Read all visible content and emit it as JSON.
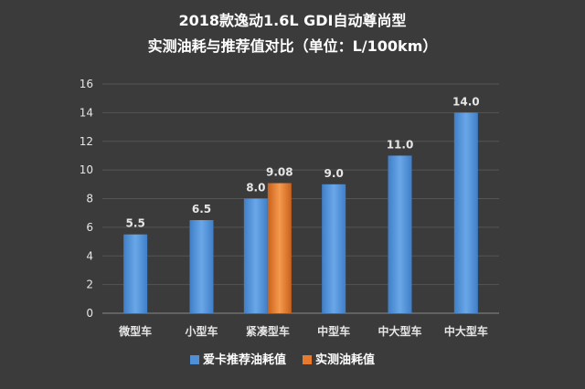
{
  "chart_data": {
    "type": "bar",
    "title_line1": "2018款逸动1.6L  GDI自动尊尚型",
    "title_line2": "实测油耗与推荐值对比（单位：L/100km）",
    "categories": [
      "微型车",
      "小型车",
      "紧凑型车",
      "中型车",
      "中大型车",
      "中大型车"
    ],
    "series": [
      {
        "name": "爱卡推荐油耗值",
        "color": "#4f8fd6",
        "values": [
          5.5,
          6.5,
          8.0,
          9.0,
          11.0,
          14.0
        ],
        "labels": [
          "5.5",
          "6.5",
          "8.0",
          "9.0",
          "11.0",
          "14.0"
        ]
      },
      {
        "name": "实测油耗值",
        "color": "#e77a2c",
        "values": [
          null,
          null,
          9.08,
          null,
          null,
          null
        ],
        "labels": [
          null,
          null,
          "9.08",
          null,
          null,
          null
        ]
      }
    ],
    "ylim": [
      0,
      16
    ],
    "yticks": [
      0,
      2,
      4,
      6,
      8,
      10,
      12,
      14,
      16
    ],
    "grid": true,
    "legend_position": "bottom"
  }
}
